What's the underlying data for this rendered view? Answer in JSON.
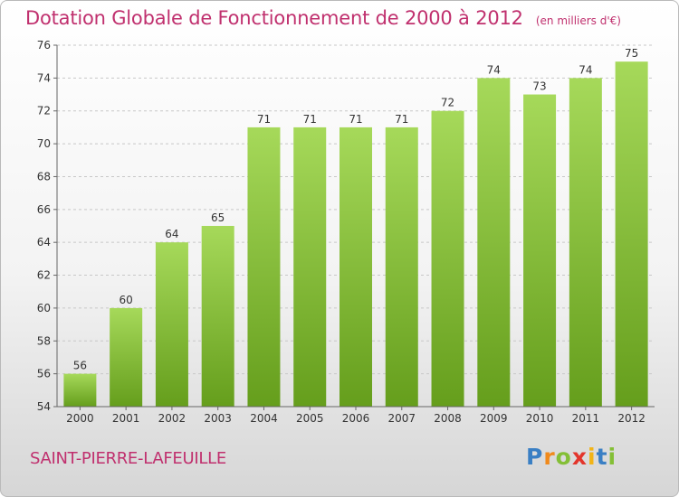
{
  "title": "Dotation Globale de Fonctionnement de 2000 à 2012",
  "unit_note": "(en milliers d'€)",
  "location": "SAINT-PIERRE-LAFEUILLE",
  "logo": {
    "text": "Proxiti",
    "letters": [
      "P",
      "r",
      "o",
      "x",
      "i",
      "t",
      "i"
    ]
  },
  "colors": {
    "bar_light": "#a6d95a",
    "bar_dark": "#659e1c",
    "title": "#c0306e"
  },
  "chart_data": {
    "type": "bar",
    "title": "Dotation Globale de Fonctionnement de 2000 à 2012",
    "subtitle": "(en milliers d'€)",
    "categories": [
      "2000",
      "2001",
      "2002",
      "2003",
      "2004",
      "2005",
      "2006",
      "2007",
      "2008",
      "2009",
      "2010",
      "2011",
      "2012"
    ],
    "values": [
      56,
      60,
      64,
      65,
      71,
      71,
      71,
      71,
      72,
      74,
      73,
      74,
      75
    ],
    "ylim": [
      54,
      76
    ],
    "yticks": [
      54,
      56,
      58,
      60,
      62,
      64,
      66,
      68,
      70,
      72,
      74,
      76
    ],
    "grid": true,
    "data_labels": true
  }
}
